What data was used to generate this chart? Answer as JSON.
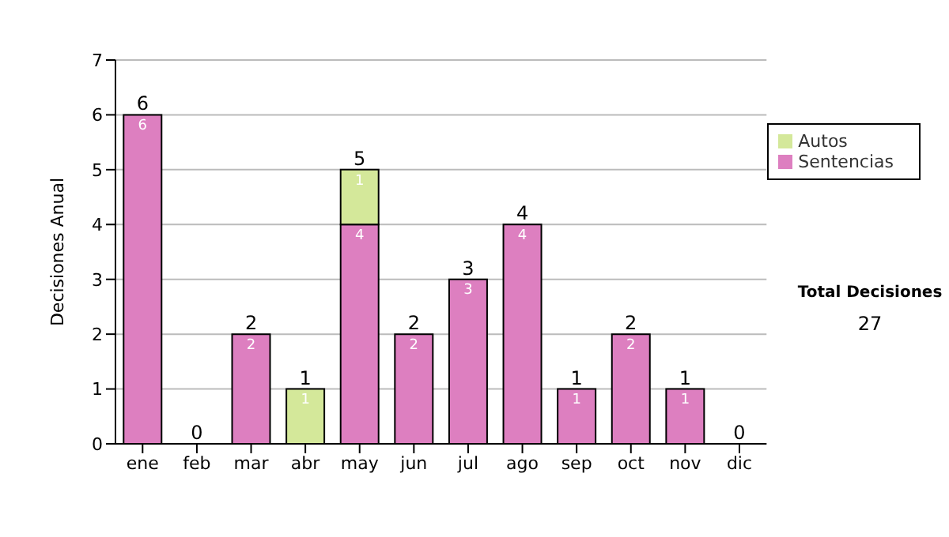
{
  "chart_data": {
    "type": "bar",
    "stacked": true,
    "ylabel": "Decisiones Anual",
    "categories": [
      "ene",
      "feb",
      "mar",
      "abr",
      "may",
      "jun",
      "jul",
      "ago",
      "sep",
      "oct",
      "nov",
      "dic"
    ],
    "series": [
      {
        "name": "Sentencias",
        "color": "#dd7fc0",
        "values": [
          6,
          0,
          2,
          0,
          4,
          2,
          3,
          4,
          1,
          2,
          1,
          0
        ],
        "value_labels": [
          "6",
          null,
          "2",
          null,
          "4",
          "2",
          "3",
          "4",
          "1",
          "2",
          "1",
          null
        ]
      },
      {
        "name": "Autos",
        "color": "#d4e89a",
        "values": [
          0,
          0,
          0,
          1,
          1,
          0,
          0,
          0,
          0,
          0,
          0,
          0
        ],
        "value_labels": [
          null,
          null,
          null,
          "1",
          "1",
          null,
          null,
          null,
          null,
          null,
          null,
          null
        ]
      }
    ],
    "totals": [
      "6",
      "0",
      "2",
      "1",
      "5",
      "2",
      "3",
      "4",
      "1",
      "2",
      "1",
      "0"
    ],
    "ylim": [
      0,
      7
    ],
    "yticks": [
      0,
      1,
      2,
      3,
      4,
      5,
      6,
      7
    ],
    "grid": "y",
    "legend": "right",
    "annotations": [
      "Total Decisiones",
      "27"
    ]
  }
}
